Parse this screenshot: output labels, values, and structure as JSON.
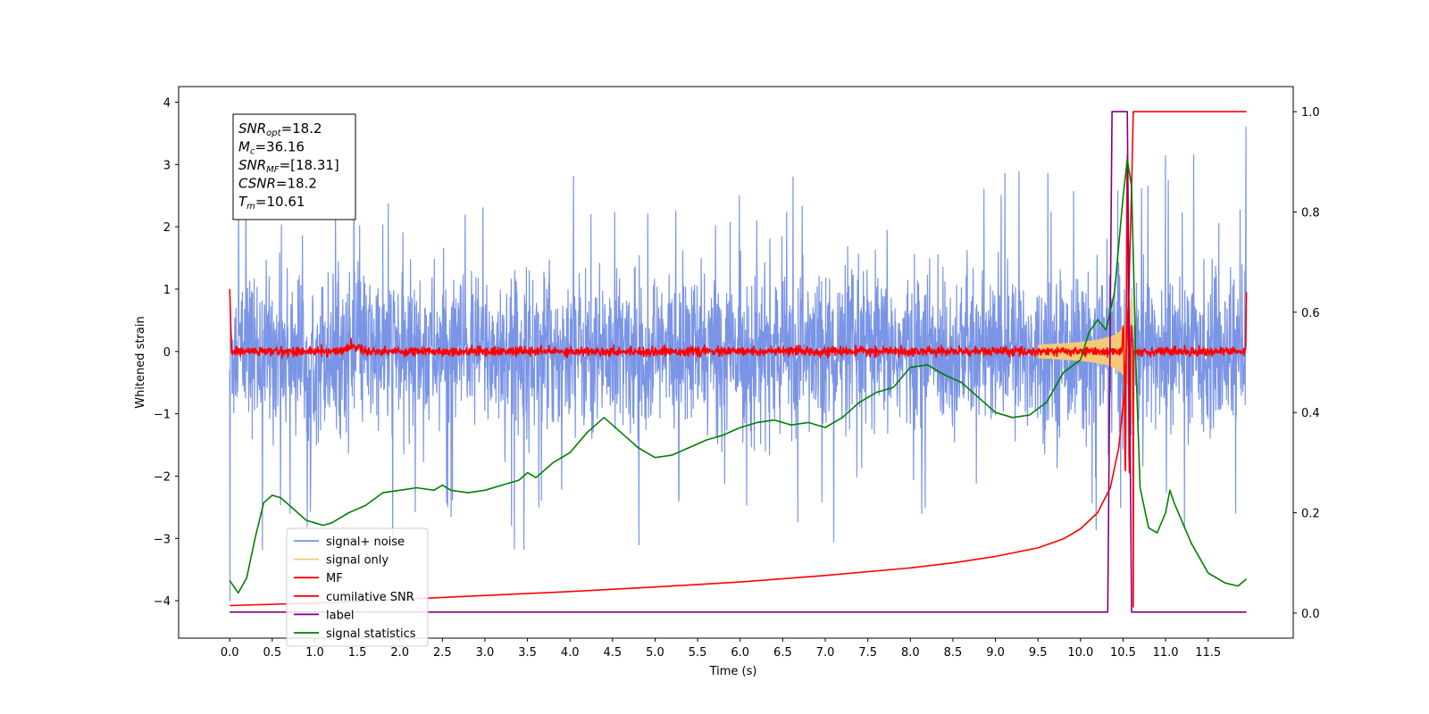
{
  "chart_data": {
    "type": "line",
    "xlabel": "Time (s)",
    "ylabel": "Whitened strain",
    "xlim": [
      -0.6,
      12.5
    ],
    "ylim_left": [
      -4.6,
      4.25
    ],
    "ylim_right": [
      -0.05,
      1.05
    ],
    "x_ticks": [
      "0.0",
      "0.5",
      "1.0",
      "1.5",
      "2.0",
      "2.5",
      "3.0",
      "3.5",
      "4.0",
      "4.5",
      "5.0",
      "5.5",
      "6.0",
      "6.5",
      "7.0",
      "7.5",
      "8.0",
      "8.5",
      "9.0",
      "9.5",
      "10.0",
      "10.5",
      "11.0",
      "11.5"
    ],
    "y_ticks_left": [
      "4",
      "3",
      "2",
      "1",
      "0",
      "−1",
      "−2",
      "−3",
      "−4"
    ],
    "y_ticks_right": [
      "1.0",
      "0.8",
      "0.6",
      "0.4",
      "0.2",
      "0.0"
    ],
    "legend_position": "lower-left",
    "info_box": {
      "position": "top-left",
      "lines": [
        {
          "base": "SNR",
          "sub": "opt",
          "value": "=18.2"
        },
        {
          "base": "M",
          "sub": "c",
          "value": "=36.16"
        },
        {
          "base": "SNR",
          "sub": "MF",
          "value": "=[18.31]"
        },
        {
          "base": "CSNR",
          "sub": "",
          "value": "=18.2"
        },
        {
          "base": "T",
          "sub": "m",
          "value": "=10.61"
        }
      ]
    },
    "series": [
      {
        "name": "signal+ noise",
        "axis": "left",
        "color": "#7a94e6",
        "kind": "noise",
        "x_range": [
          0.0,
          11.95
        ],
        "typical_range": [
          -1.2,
          1.2
        ],
        "max": 3.6,
        "min": -4.0
      },
      {
        "name": "signal only",
        "axis": "left",
        "color": "#f5c97a",
        "kind": "chirp",
        "x_range": [
          9.5,
          10.61
        ],
        "peak_amplitude": 1.9
      },
      {
        "name": "MF",
        "axis": "left",
        "color": "#ff0000",
        "kind": "mf",
        "x_range": [
          0.0,
          11.95
        ],
        "baseline": 0.0,
        "start_value": 1.0,
        "end_value": 0.95,
        "peak_time": 10.55,
        "peak_value": 3.2,
        "dip_value": -4.1
      },
      {
        "name": "cumilative SNR",
        "axis": "right",
        "color": "#ff0000",
        "points": [
          [
            0.0,
            0.015
          ],
          [
            1.0,
            0.02
          ],
          [
            2.0,
            0.027
          ],
          [
            3.0,
            0.035
          ],
          [
            4.0,
            0.043
          ],
          [
            5.0,
            0.052
          ],
          [
            6.0,
            0.062
          ],
          [
            7.0,
            0.075
          ],
          [
            8.0,
            0.09
          ],
          [
            8.5,
            0.1
          ],
          [
            9.0,
            0.113
          ],
          [
            9.5,
            0.13
          ],
          [
            9.8,
            0.148
          ],
          [
            10.0,
            0.168
          ],
          [
            10.2,
            0.2
          ],
          [
            10.35,
            0.25
          ],
          [
            10.45,
            0.33
          ],
          [
            10.52,
            0.45
          ],
          [
            10.57,
            0.65
          ],
          [
            10.6,
            0.85
          ],
          [
            10.62,
            1.0
          ],
          [
            11.95,
            1.0
          ]
        ]
      },
      {
        "name": "label",
        "axis": "right",
        "color": "#800080",
        "points": [
          [
            0.0,
            0.002
          ],
          [
            10.32,
            0.002
          ],
          [
            10.37,
            1.0
          ],
          [
            10.55,
            1.0
          ],
          [
            10.6,
            0.002
          ],
          [
            11.95,
            0.002
          ]
        ]
      },
      {
        "name": "signal statistics",
        "axis": "right",
        "color": "#008000",
        "points": [
          [
            0.0,
            0.065
          ],
          [
            0.1,
            0.04
          ],
          [
            0.2,
            0.07
          ],
          [
            0.3,
            0.15
          ],
          [
            0.4,
            0.22
          ],
          [
            0.5,
            0.235
          ],
          [
            0.6,
            0.23
          ],
          [
            0.8,
            0.2
          ],
          [
            0.9,
            0.185
          ],
          [
            1.0,
            0.18
          ],
          [
            1.1,
            0.175
          ],
          [
            1.2,
            0.18
          ],
          [
            1.4,
            0.2
          ],
          [
            1.6,
            0.215
          ],
          [
            1.8,
            0.24
          ],
          [
            2.0,
            0.245
          ],
          [
            2.2,
            0.25
          ],
          [
            2.4,
            0.245
          ],
          [
            2.5,
            0.255
          ],
          [
            2.6,
            0.245
          ],
          [
            2.8,
            0.24
          ],
          [
            3.0,
            0.245
          ],
          [
            3.2,
            0.255
          ],
          [
            3.4,
            0.265
          ],
          [
            3.5,
            0.28
          ],
          [
            3.6,
            0.27
          ],
          [
            3.8,
            0.3
          ],
          [
            4.0,
            0.32
          ],
          [
            4.2,
            0.36
          ],
          [
            4.4,
            0.39
          ],
          [
            4.6,
            0.36
          ],
          [
            4.8,
            0.33
          ],
          [
            5.0,
            0.31
          ],
          [
            5.2,
            0.315
          ],
          [
            5.4,
            0.33
          ],
          [
            5.6,
            0.345
          ],
          [
            5.8,
            0.355
          ],
          [
            6.0,
            0.37
          ],
          [
            6.2,
            0.38
          ],
          [
            6.4,
            0.385
          ],
          [
            6.6,
            0.375
          ],
          [
            6.8,
            0.38
          ],
          [
            7.0,
            0.37
          ],
          [
            7.2,
            0.39
          ],
          [
            7.4,
            0.42
          ],
          [
            7.6,
            0.44
          ],
          [
            7.8,
            0.45
          ],
          [
            8.0,
            0.49
          ],
          [
            8.2,
            0.495
          ],
          [
            8.4,
            0.475
          ],
          [
            8.6,
            0.46
          ],
          [
            8.8,
            0.43
          ],
          [
            9.0,
            0.4
          ],
          [
            9.2,
            0.39
          ],
          [
            9.4,
            0.395
          ],
          [
            9.6,
            0.42
          ],
          [
            9.8,
            0.48
          ],
          [
            10.0,
            0.505
          ],
          [
            10.1,
            0.56
          ],
          [
            10.2,
            0.585
          ],
          [
            10.3,
            0.565
          ],
          [
            10.4,
            0.64
          ],
          [
            10.5,
            0.83
          ],
          [
            10.55,
            0.905
          ],
          [
            10.6,
            0.85
          ],
          [
            10.65,
            0.5
          ],
          [
            10.7,
            0.25
          ],
          [
            10.8,
            0.17
          ],
          [
            10.9,
            0.16
          ],
          [
            11.0,
            0.2
          ],
          [
            11.05,
            0.245
          ],
          [
            11.1,
            0.22
          ],
          [
            11.3,
            0.14
          ],
          [
            11.5,
            0.08
          ],
          [
            11.7,
            0.06
          ],
          [
            11.85,
            0.054
          ],
          [
            11.95,
            0.068
          ]
        ]
      }
    ]
  }
}
